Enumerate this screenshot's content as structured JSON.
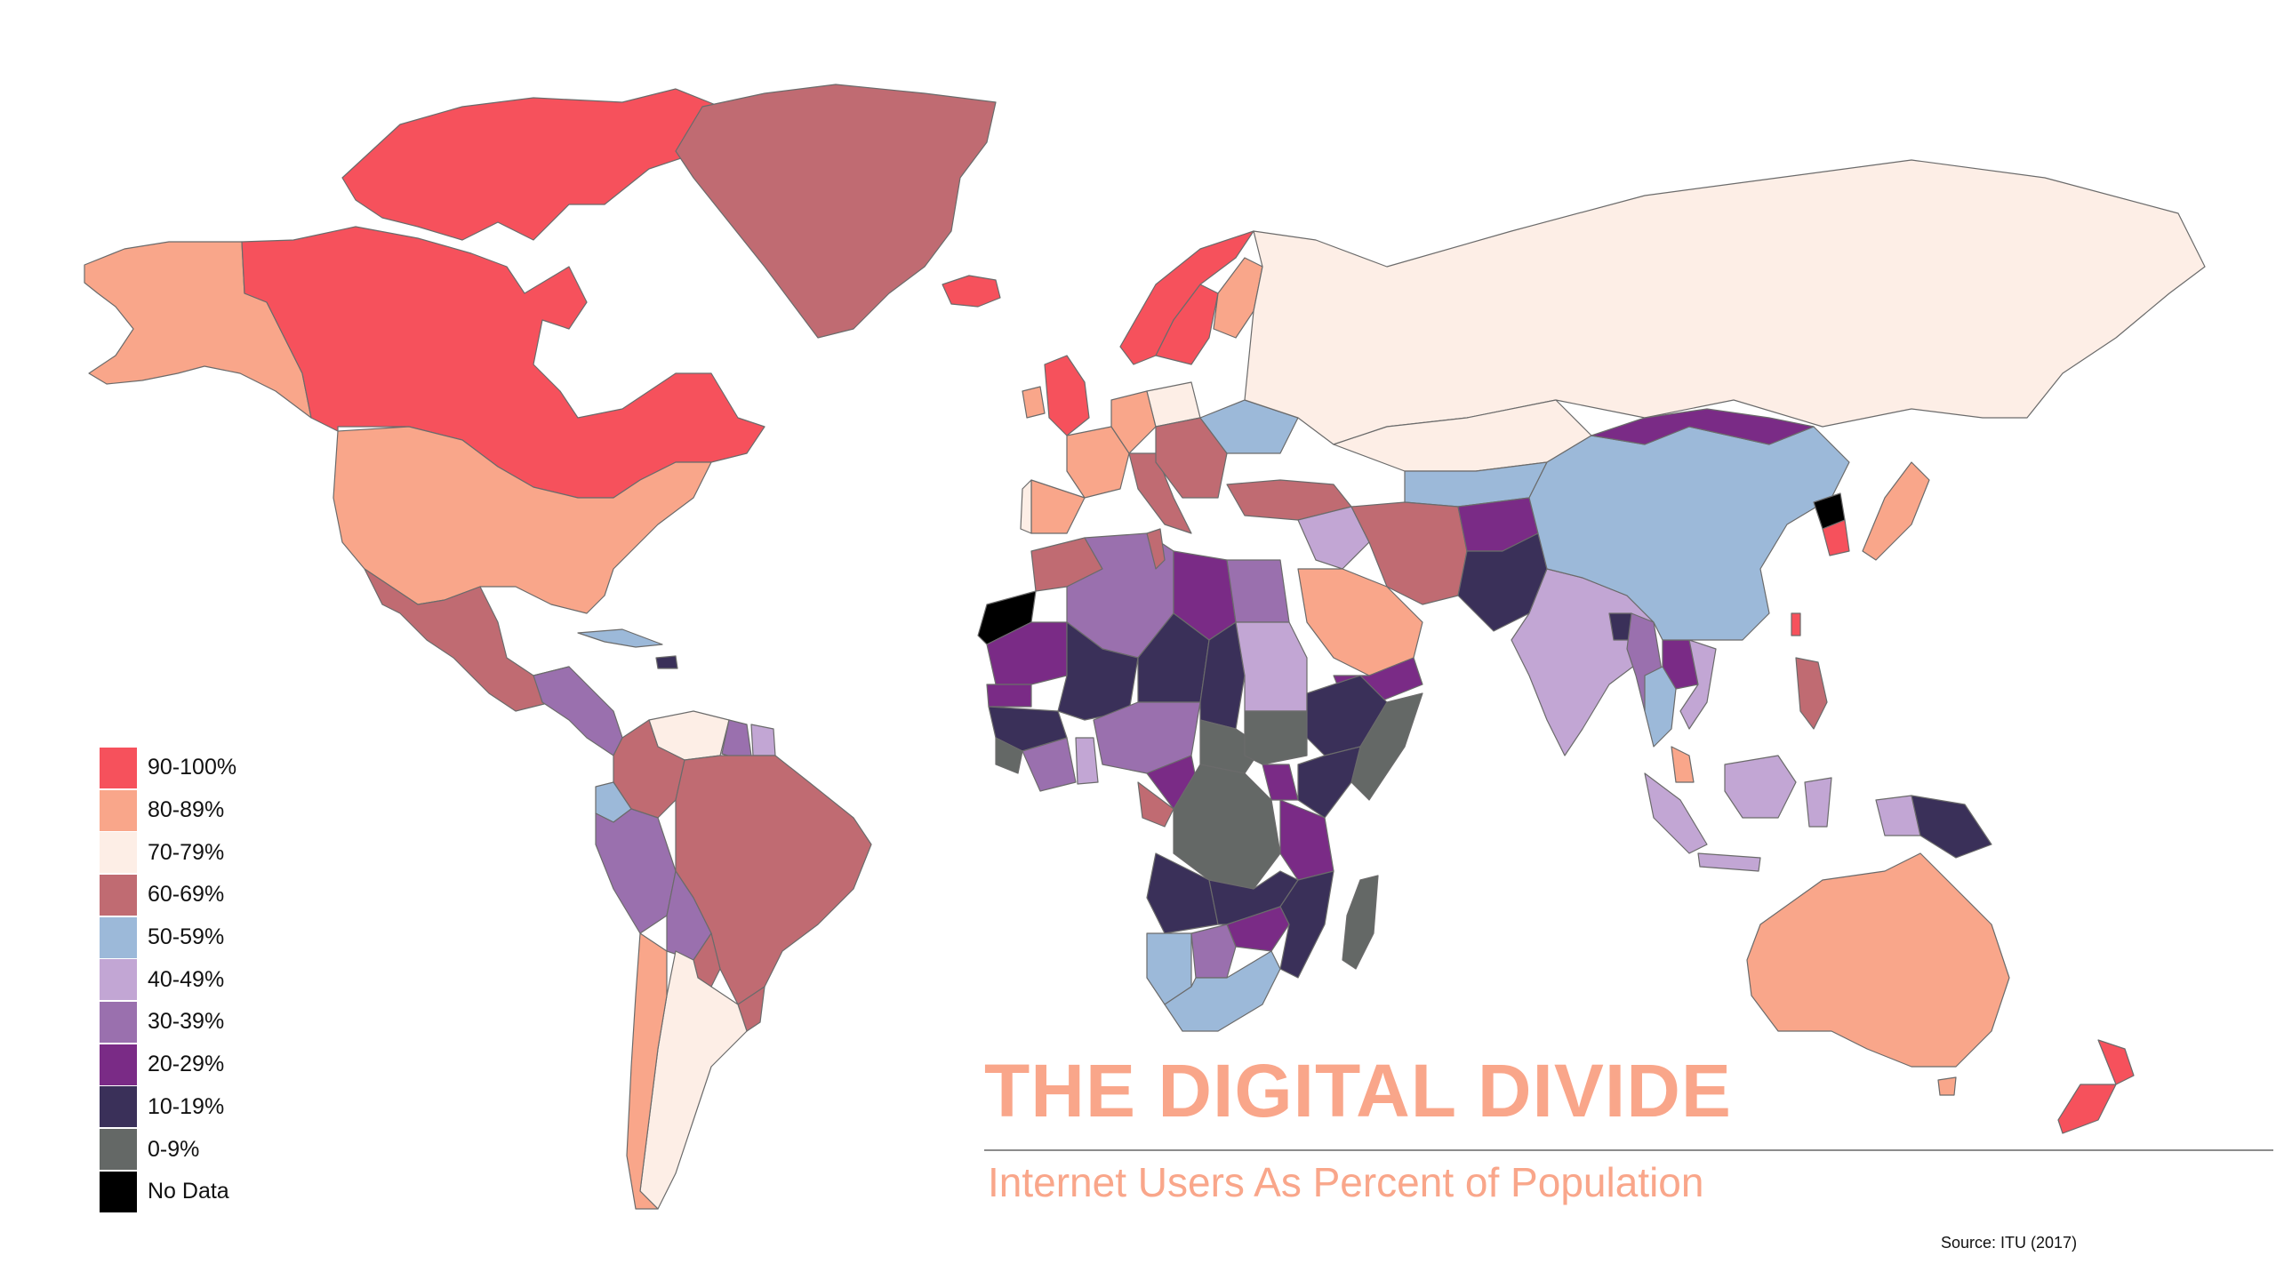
{
  "title": "THE DIGITAL DIVIDE",
  "subtitle": "Internet Users As Percent of Population",
  "source": "Source:  ITU (2017)",
  "colors": {
    "90-100": "#f6515c",
    "80-89": "#f9a68a",
    "70-79": "#fdeee6",
    "60-69": "#c06b72",
    "50-59": "#9cb9d9",
    "40-49": "#c2a6d4",
    "30-39": "#9a70ae",
    "20-29": "#7a2b86",
    "10-19": "#3a3059",
    "0-9": "#646866",
    "no_data": "#000000",
    "title": "#f9a68a",
    "subtitle": "#f9a68a"
  },
  "legend": [
    {
      "key": "90-100",
      "label": "90-100%"
    },
    {
      "key": "80-89",
      "label": "80-89%"
    },
    {
      "key": "70-79",
      "label": "70-79%"
    },
    {
      "key": "60-69",
      "label": "60-69%"
    },
    {
      "key": "50-59",
      "label": "50-59%"
    },
    {
      "key": "40-49",
      "label": "40-49%"
    },
    {
      "key": "30-39",
      "label": "30-39%"
    },
    {
      "key": "20-29",
      "label": "20-29%"
    },
    {
      "key": "10-19",
      "label": "10-19%"
    },
    {
      "key": "0-9",
      "label": "0-9%"
    },
    {
      "key": "no_data",
      "label": "No Data"
    }
  ],
  "regions": [
    {
      "name": "Alaska",
      "band": "80-89"
    },
    {
      "name": "Canada",
      "band": "90-100"
    },
    {
      "name": "Canadian Arctic Islands",
      "band": "90-100"
    },
    {
      "name": "Greenland",
      "band": "60-69"
    },
    {
      "name": "Iceland",
      "band": "90-100"
    },
    {
      "name": "United States",
      "band": "80-89"
    },
    {
      "name": "Mexico",
      "band": "60-69"
    },
    {
      "name": "Central America",
      "band": "30-39"
    },
    {
      "name": "Cuba",
      "band": "50-59"
    },
    {
      "name": "Haiti",
      "band": "10-19"
    },
    {
      "name": "Colombia",
      "band": "60-69"
    },
    {
      "name": "Venezuela",
      "band": "70-79"
    },
    {
      "name": "Guyana",
      "band": "30-39"
    },
    {
      "name": "Suriname",
      "band": "40-49"
    },
    {
      "name": "Ecuador",
      "band": "50-59"
    },
    {
      "name": "Peru",
      "band": "30-39"
    },
    {
      "name": "Bolivia",
      "band": "30-39"
    },
    {
      "name": "Brazil",
      "band": "60-69"
    },
    {
      "name": "Paraguay",
      "band": "60-69"
    },
    {
      "name": "Uruguay",
      "band": "60-69"
    },
    {
      "name": "Chile",
      "band": "80-89"
    },
    {
      "name": "Argentina",
      "band": "70-79"
    },
    {
      "name": "United Kingdom",
      "band": "90-100"
    },
    {
      "name": "Ireland",
      "band": "80-89"
    },
    {
      "name": "Norway",
      "band": "90-100"
    },
    {
      "name": "Sweden",
      "band": "90-100"
    },
    {
      "name": "Finland",
      "band": "80-89"
    },
    {
      "name": "France",
      "band": "80-89"
    },
    {
      "name": "Spain",
      "band": "80-89"
    },
    {
      "name": "Portugal",
      "band": "70-79"
    },
    {
      "name": "Germany",
      "band": "80-89"
    },
    {
      "name": "Poland",
      "band": "70-79"
    },
    {
      "name": "Italy",
      "band": "60-69"
    },
    {
      "name": "Balkans",
      "band": "60-69"
    },
    {
      "name": "Ukraine",
      "band": "50-59"
    },
    {
      "name": "Russia",
      "band": "70-79"
    },
    {
      "name": "Turkey",
      "band": "60-69"
    },
    {
      "name": "Kazakhstan",
      "band": "70-79"
    },
    {
      "name": "Central Asia",
      "band": "50-59"
    },
    {
      "name": "Iran",
      "band": "60-69"
    },
    {
      "name": "Iraq",
      "band": "40-49"
    },
    {
      "name": "Saudi Arabia",
      "band": "80-89"
    },
    {
      "name": "Yemen",
      "band": "20-29"
    },
    {
      "name": "Afghanistan",
      "band": "20-29"
    },
    {
      "name": "Pakistan",
      "band": "10-19"
    },
    {
      "name": "India",
      "band": "40-49"
    },
    {
      "name": "Nepal",
      "band": "40-49"
    },
    {
      "name": "Bangladesh",
      "band": "10-19"
    },
    {
      "name": "Myanmar",
      "band": "30-39"
    },
    {
      "name": "Laos",
      "band": "20-29"
    },
    {
      "name": "Thailand",
      "band": "50-59"
    },
    {
      "name": "Vietnam",
      "band": "40-49"
    },
    {
      "name": "Mongolia",
      "band": "20-29"
    },
    {
      "name": "China",
      "band": "50-59"
    },
    {
      "name": "North Korea",
      "band": "no_data"
    },
    {
      "name": "South Korea",
      "band": "90-100"
    },
    {
      "name": "Japan",
      "band": "80-89"
    },
    {
      "name": "Taiwan",
      "band": "90-100"
    },
    {
      "name": "Philippines",
      "band": "60-69"
    },
    {
      "name": "Malaysia",
      "band": "80-89"
    },
    {
      "name": "Sumatra",
      "band": "40-49"
    },
    {
      "name": "Borneo Indonesia",
      "band": "40-49"
    },
    {
      "name": "Java",
      "band": "40-49"
    },
    {
      "name": "Sulawesi",
      "band": "40-49"
    },
    {
      "name": "New Guinea West",
      "band": "40-49"
    },
    {
      "name": "Papua New Guinea",
      "band": "10-19"
    },
    {
      "name": "Australia",
      "band": "80-89"
    },
    {
      "name": "Tasmania",
      "band": "80-89"
    },
    {
      "name": "New Zealand North",
      "band": "90-100"
    },
    {
      "name": "New Zealand South",
      "band": "90-100"
    },
    {
      "name": "Morocco",
      "band": "60-69"
    },
    {
      "name": "Western Sahara",
      "band": "no_data"
    },
    {
      "name": "Algeria",
      "band": "30-39"
    },
    {
      "name": "Tunisia",
      "band": "60-69"
    },
    {
      "name": "Libya",
      "band": "20-29"
    },
    {
      "name": "Egypt",
      "band": "30-39"
    },
    {
      "name": "Mauritania",
      "band": "20-29"
    },
    {
      "name": "Mali",
      "band": "10-19"
    },
    {
      "name": "Niger",
      "band": "10-19"
    },
    {
      "name": "Chad",
      "band": "10-19"
    },
    {
      "name": "Sudan",
      "band": "40-49"
    },
    {
      "name": "South Sudan",
      "band": "0-9"
    },
    {
      "name": "Senegal",
      "band": "20-29"
    },
    {
      "name": "Guinea",
      "band": "10-19"
    },
    {
      "name": "Sierra Leone",
      "band": "0-9"
    },
    {
      "name": "Cote d'Ivoire",
      "band": "30-39"
    },
    {
      "name": "Ghana",
      "band": "40-49"
    },
    {
      "name": "Nigeria",
      "band": "30-39"
    },
    {
      "name": "Cameroon",
      "band": "20-29"
    },
    {
      "name": "Gabon",
      "band": "60-69"
    },
    {
      "name": "Central African Republic",
      "band": "0-9"
    },
    {
      "name": "DR Congo",
      "band": "0-9"
    },
    {
      "name": "Ethiopia",
      "band": "10-19"
    },
    {
      "name": "Somalia",
      "band": "0-9"
    },
    {
      "name": "Kenya",
      "band": "10-19"
    },
    {
      "name": "Uganda",
      "band": "20-29"
    },
    {
      "name": "Tanzania",
      "band": "20-29"
    },
    {
      "name": "Angola",
      "band": "10-19"
    },
    {
      "name": "Zambia",
      "band": "10-19"
    },
    {
      "name": "Mozambique",
      "band": "10-19"
    },
    {
      "name": "Zimbabwe",
      "band": "20-29"
    },
    {
      "name": "Namibia",
      "band": "50-59"
    },
    {
      "name": "Botswana",
      "band": "30-39"
    },
    {
      "name": "South Africa",
      "band": "50-59"
    },
    {
      "name": "Madagascar",
      "band": "0-9"
    }
  ]
}
